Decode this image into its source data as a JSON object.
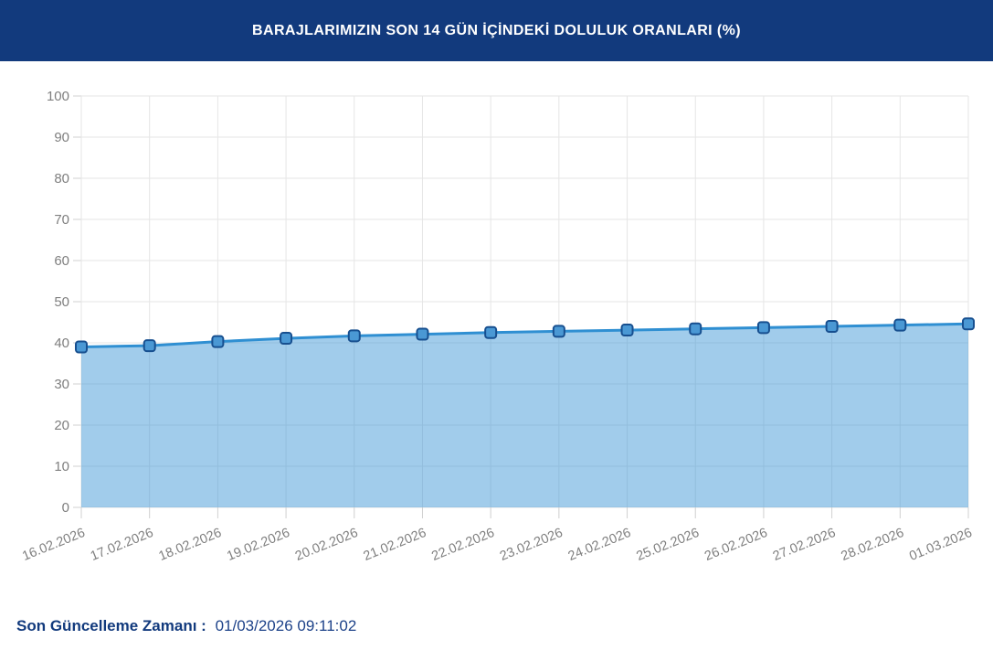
{
  "header": {
    "title": "BARAJLARIMIZIN SON 14 GÜN İÇİNDEKİ DOLULUK ORANLARI (%)",
    "bg_color": "#123a7d",
    "text_color": "#ffffff"
  },
  "chart_data": {
    "type": "area",
    "title": "BARAJLARIMIZIN SON 14 GÜN İÇİNDEKİ DOLULUK ORANLARI (%)",
    "categories": [
      "16.02.2026",
      "17.02.2026",
      "18.02.2026",
      "19.02.2026",
      "20.02.2026",
      "21.02.2026",
      "22.02.2026",
      "23.02.2026",
      "24.02.2026",
      "25.02.2026",
      "26.02.2026",
      "27.02.2026",
      "28.02.2026",
      "01.03.2026"
    ],
    "values": [
      39.0,
      39.3,
      40.3,
      41.1,
      41.7,
      42.1,
      42.5,
      42.8,
      43.1,
      43.4,
      43.7,
      44.0,
      44.3,
      44.6
    ],
    "xlabel": "",
    "ylabel": "",
    "ylim": [
      0,
      100
    ],
    "ytick_step": 10,
    "yticks": [
      0,
      10,
      20,
      30,
      40,
      50,
      60,
      70,
      80,
      90,
      100
    ],
    "grid": true,
    "legend": "none",
    "colors": {
      "line": "#2f8fd2",
      "area_fill": "rgba(47,143,210,0.45)",
      "marker_fill": "#4a98d4",
      "marker_border": "#174f8f",
      "gridline": "#e6e6e6",
      "tick": "#d0d0d0",
      "axis_label": "#7f7f7f"
    }
  },
  "footer": {
    "label": "Son Güncelleme Zamanı :",
    "value": "01/03/2026 09:11:02"
  }
}
